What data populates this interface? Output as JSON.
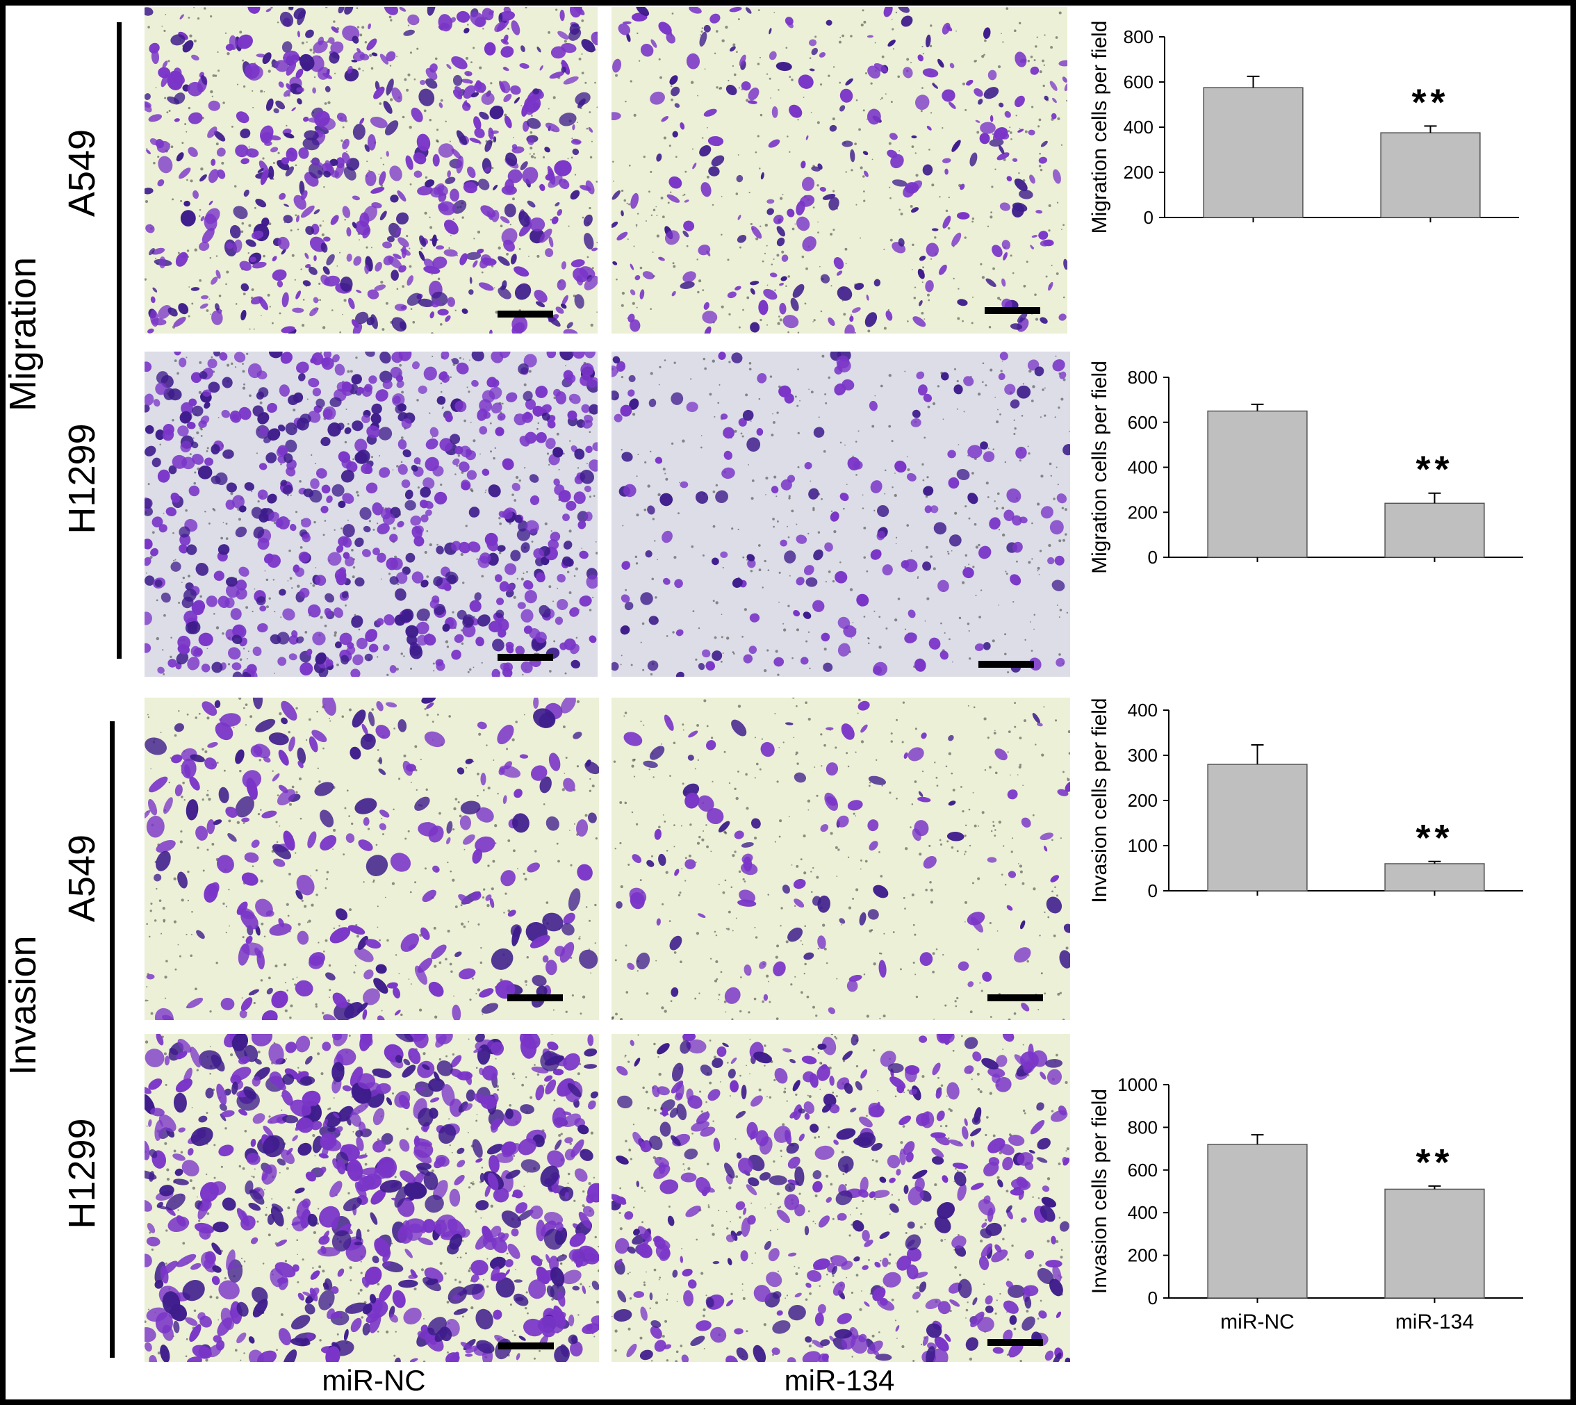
{
  "figure": {
    "sections": [
      {
        "label": "Migration",
        "rows": [
          {
            "cell_line": "A549"
          },
          {
            "cell_line": "H1299"
          }
        ]
      },
      {
        "label": "Invasion",
        "rows": [
          {
            "cell_line": "A549"
          },
          {
            "cell_line": "H1299"
          }
        ]
      }
    ],
    "columns": [
      "miR-NC",
      "miR-134"
    ],
    "colors": {
      "stain": "#7a35c8",
      "stain_dark": "#3e1c8c",
      "background_a549": "#ecf0d6",
      "background_h1299_migration": "#dcdde6",
      "bar_fill": "#bfbfbf",
      "bar_stroke": "#555555"
    }
  },
  "chart_data": [
    {
      "type": "bar",
      "categories": [
        "miR-NC",
        "miR-134"
      ],
      "values": [
        575,
        375
      ],
      "errors": [
        50,
        30
      ],
      "significance": [
        "",
        "**"
      ],
      "ylabel": "Migration cells per field",
      "ylim": [
        0,
        800
      ],
      "yticks": [
        "0",
        "200",
        "400",
        "600",
        "800"
      ],
      "show_xticklabels": false
    },
    {
      "type": "bar",
      "categories": [
        "miR-NC",
        "miR-134"
      ],
      "values": [
        650,
        240
      ],
      "errors": [
        30,
        45
      ],
      "significance": [
        "",
        "**"
      ],
      "ylabel": "Migration cells per field",
      "ylim": [
        0,
        800
      ],
      "yticks": [
        "0",
        "200",
        "400",
        "600",
        "800"
      ],
      "show_xticklabels": false
    },
    {
      "type": "bar",
      "categories": [
        "miR-NC",
        "miR-134"
      ],
      "values": [
        280,
        60
      ],
      "errors": [
        43,
        5
      ],
      "significance": [
        "",
        "**"
      ],
      "ylabel": "Invasion cells per field",
      "ylim": [
        0,
        400
      ],
      "yticks": [
        "0",
        "100",
        "200",
        "300",
        "400"
      ],
      "show_xticklabels": false
    },
    {
      "type": "bar",
      "categories": [
        "miR-NC",
        "miR-134"
      ],
      "values": [
        720,
        510
      ],
      "errors": [
        45,
        15
      ],
      "significance": [
        "",
        "**"
      ],
      "ylabel": "Invasion cells per field",
      "ylim": [
        0,
        1000
      ],
      "yticks": [
        "0",
        "200",
        "400",
        "600",
        "800",
        "1000"
      ],
      "show_xticklabels": true
    }
  ]
}
